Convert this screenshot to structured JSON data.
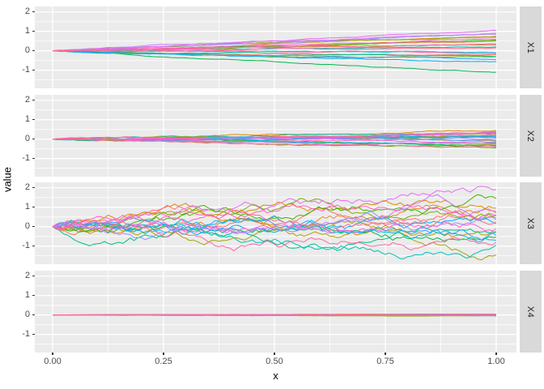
{
  "chart_data": {
    "type": "line",
    "title": "",
    "xlabel": "x",
    "ylabel": "value",
    "legend": "none",
    "grid": true,
    "x_range": [
      0,
      1
    ],
    "y_display_range": [
      -1.93,
      2.28
    ],
    "x_ticks": {
      "labels": [
        "0.00",
        "0.25",
        "0.50",
        "0.75",
        "1.00"
      ],
      "values": [
        0,
        0.25,
        0.5,
        0.75,
        1
      ]
    },
    "y_ticks": {
      "labels": [
        "2",
        "1",
        "0",
        "-1"
      ],
      "values": [
        2,
        1,
        0,
        -1
      ]
    },
    "x_minor_ticks": [
      0.125,
      0.375,
      0.625,
      0.875
    ],
    "y_minor_ticks": [
      1.5,
      0.5,
      -0.5,
      -1.5
    ],
    "n_points": 120,
    "n_series_per_facet": 20,
    "palette": [
      "#F8766D",
      "#EA8331",
      "#D89000",
      "#C09B00",
      "#A3A500",
      "#7CAE00",
      "#39B600",
      "#00BB4E",
      "#00C087",
      "#00C0B8",
      "#00BCD8",
      "#00B0F6",
      "#35A2FF",
      "#9590FF",
      "#C77CFF",
      "#E76BF3",
      "#FA62DB",
      "#FF61C3",
      "#FF67A4",
      "#FF6C90"
    ],
    "facets": [
      {
        "label": "X1",
        "pattern": "linear-fan",
        "y_start": 0,
        "wiggle": 0.015,
        "y_ends": [
          -0.2,
          0.5,
          0.7,
          0.35,
          0.75,
          -0.3,
          0.55,
          -1.1,
          -0.3,
          0.2,
          -0.1,
          -0.55,
          -0.45,
          0.9,
          0.85,
          1.05,
          0.6,
          0.3,
          -0.15,
          0.15
        ]
      },
      {
        "label": "X2",
        "pattern": "narrow-fan",
        "y_start": 0,
        "wiggle": 0.022,
        "y_ends": [
          0.25,
          -0.1,
          0.45,
          0.2,
          0.35,
          -0.3,
          -0.45,
          -0.35,
          0.1,
          0.3,
          -0.2,
          0.15,
          -0.05,
          0.05,
          -0.25,
          0.35,
          0.2,
          -0.15,
          0.4,
          -0.4
        ]
      },
      {
        "label": "X3",
        "pattern": "random-walk",
        "y_start": 0,
        "wiggle": 0.15,
        "y_ends": [
          0.45,
          0.7,
          0.95,
          -0.3,
          -1.45,
          0.6,
          1.45,
          -0.55,
          -0.25,
          -0.95,
          -0.7,
          0.15,
          -0.45,
          0.35,
          0.8,
          1.9,
          -0.1,
          0.55,
          -0.8,
          0.25
        ]
      },
      {
        "label": "X4",
        "pattern": "flat",
        "y_start": 0,
        "wiggle": 0.0035,
        "y_ends": [
          0.02,
          -0.03,
          0.04,
          -0.02,
          0.03,
          -0.04,
          0.02,
          0.03,
          -0.03,
          0.04,
          -0.02,
          0.02,
          -0.04,
          0.03,
          -0.02,
          0.04,
          -0.03,
          0.02,
          -0.02,
          0.03
        ]
      }
    ],
    "colors": {
      "panel_bg": "#EBEBEB",
      "strip_bg": "#D9D9D9",
      "grid": "#FFFFFF",
      "tick_label": "#4D4D4D",
      "axis_title": "#000000",
      "strip_text": "#1A1A1A",
      "tick_mark": "#333333"
    }
  }
}
